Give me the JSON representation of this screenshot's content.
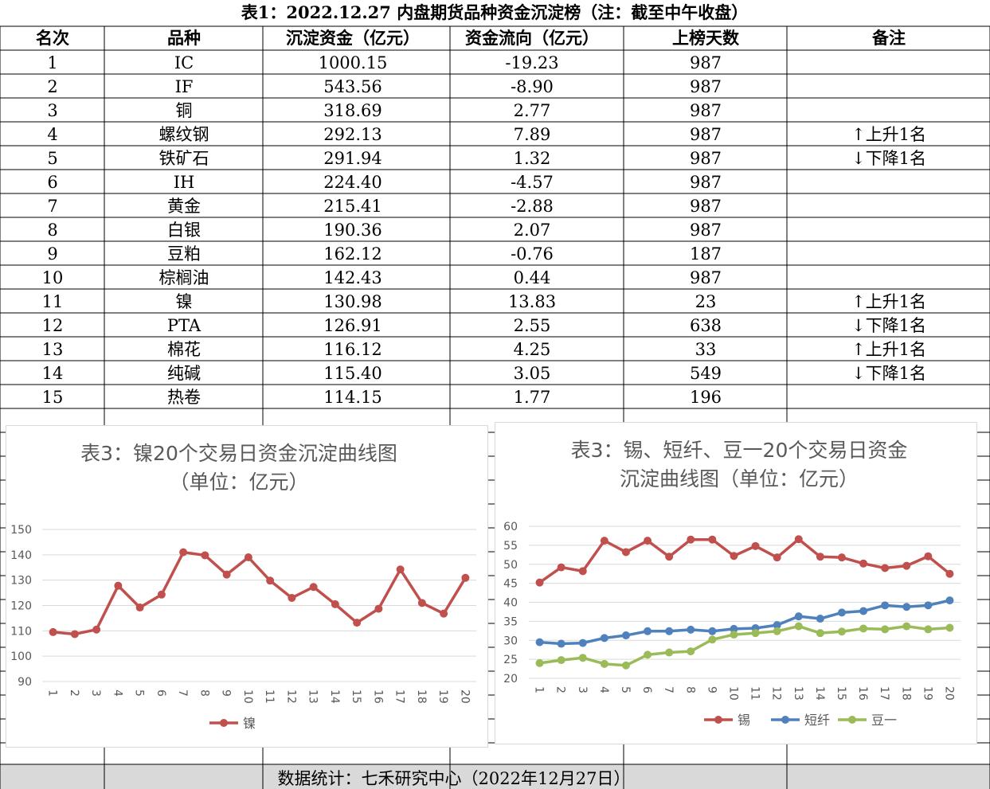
{
  "table": {
    "title": "表1：2022.12.27 内盘期货品种资金沉淀榜（注：截至中午收盘）",
    "headers": [
      "名次",
      "品种",
      "沉淀资金（亿元）",
      "资金流向（亿元）",
      "上榜天数",
      "备注"
    ],
    "rows": [
      [
        "1",
        "IC",
        "1000.15",
        "-19.23",
        "987",
        ""
      ],
      [
        "2",
        "IF",
        "543.56",
        "-8.90",
        "987",
        ""
      ],
      [
        "3",
        "铜",
        "318.69",
        "2.77",
        "987",
        ""
      ],
      [
        "4",
        "螺纹钢",
        "292.13",
        "7.89",
        "987",
        "↑上升1名"
      ],
      [
        "5",
        "铁矿石",
        "291.94",
        "1.32",
        "987",
        "↓下降1名"
      ],
      [
        "6",
        "IH",
        "224.40",
        "-4.57",
        "987",
        ""
      ],
      [
        "7",
        "黄金",
        "215.41",
        "-2.88",
        "987",
        ""
      ],
      [
        "8",
        "白银",
        "190.36",
        "2.07",
        "987",
        ""
      ],
      [
        "9",
        "豆粕",
        "162.12",
        "-0.76",
        "187",
        ""
      ],
      [
        "10",
        "棕榈油",
        "142.43",
        "0.44",
        "987",
        ""
      ],
      [
        "11",
        "镍",
        "130.98",
        "13.83",
        "23",
        "↑上升1名"
      ],
      [
        "12",
        "PTA",
        "126.91",
        "2.55",
        "638",
        "↓下降1名"
      ],
      [
        "13",
        "棉花",
        "116.12",
        "4.25",
        "33",
        "↑上升1名"
      ],
      [
        "14",
        "纯碱",
        "115.40",
        "3.05",
        "549",
        "↓下降1名"
      ],
      [
        "15",
        "热卷",
        "114.15",
        "1.77",
        "196",
        ""
      ]
    ]
  },
  "footer": "数据统计：七禾研究中心（2022年12月27日）",
  "colors": {
    "tin": "#c0504d",
    "fiber": "#4f81bd",
    "soy": "#9bbb59",
    "footer_bg": "#d9d9d9"
  },
  "chart_data": [
    {
      "type": "line",
      "title_lines": [
        "表3：镍20个交易日资金沉淀曲线图",
        "（单位：亿元）"
      ],
      "x": [
        "1",
        "2",
        "3",
        "4",
        "5",
        "6",
        "7",
        "8",
        "9",
        "10",
        "11",
        "12",
        "13",
        "14",
        "15",
        "16",
        "17",
        "18",
        "19",
        "20"
      ],
      "ylim": [
        90,
        150
      ],
      "yticks": [
        90,
        100,
        110,
        120,
        130,
        140,
        150
      ],
      "grid": true,
      "legend_position": "bottom",
      "series": [
        {
          "name": "镍",
          "color": "#c0504d",
          "values": [
            109.5,
            108.7,
            110.5,
            127.8,
            119.2,
            124.3,
            141.0,
            139.8,
            132.2,
            139.0,
            129.8,
            123.0,
            127.3,
            120.5,
            113.2,
            118.7,
            134.2,
            121.0,
            116.8,
            130.9
          ]
        }
      ]
    },
    {
      "type": "line",
      "title_lines": [
        "表3：锡、短纤、豆一20个交易日资金",
        "沉淀曲线图（单位：亿元）"
      ],
      "x": [
        "1",
        "2",
        "3",
        "4",
        "5",
        "6",
        "7",
        "8",
        "9",
        "10",
        "11",
        "12",
        "13",
        "14",
        "15",
        "16",
        "17",
        "18",
        "19",
        "20"
      ],
      "ylim": [
        20,
        60
      ],
      "yticks": [
        20,
        25,
        30,
        35,
        40,
        45,
        50,
        55,
        60
      ],
      "grid": true,
      "legend_position": "bottom",
      "series": [
        {
          "name": "锡",
          "color": "#c0504d",
          "values": [
            45.2,
            49.2,
            48.2,
            56.2,
            53.2,
            56.2,
            52.0,
            56.5,
            56.5,
            52.2,
            54.8,
            51.8,
            56.6,
            52.0,
            51.8,
            50.2,
            49.0,
            49.6,
            52.1,
            47.5
          ]
        },
        {
          "name": "短纤",
          "color": "#4f81bd",
          "values": [
            29.5,
            29.1,
            29.3,
            30.6,
            31.3,
            32.4,
            32.4,
            32.8,
            32.4,
            33.0,
            33.2,
            34.0,
            36.3,
            35.7,
            37.3,
            37.7,
            39.2,
            38.8,
            39.2,
            40.5
          ]
        },
        {
          "name": "豆一",
          "color": "#9bbb59",
          "values": [
            24.0,
            24.8,
            25.4,
            23.8,
            23.4,
            26.2,
            26.8,
            27.1,
            30.2,
            31.5,
            31.9,
            32.4,
            33.7,
            31.9,
            32.3,
            33.1,
            32.9,
            33.7,
            32.9,
            33.3
          ]
        }
      ]
    }
  ]
}
